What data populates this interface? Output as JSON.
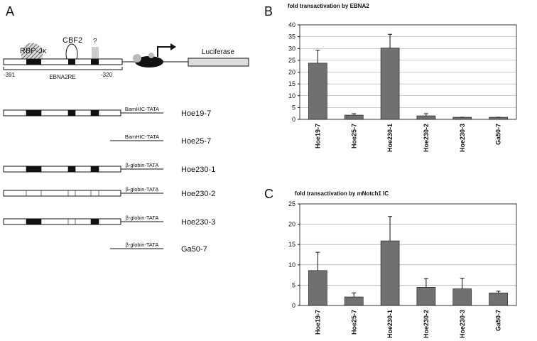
{
  "panels": [
    "A",
    "B",
    "C"
  ],
  "diagram": {
    "rbp": "RBP-Jκ",
    "cbf2": "CBF2",
    "unknown": "?",
    "reporter": "Luciferase",
    "start": "-391",
    "end": "-320",
    "region": "EBNA2RE",
    "constructs": [
      {
        "name": "Hoe19-7",
        "promoter": "BamHIC-TATA"
      },
      {
        "name": "Hoe25-7",
        "promoter": "BamHIC-TATA"
      },
      {
        "name": "Hoe230-1",
        "promoter": "β-globin-TATA"
      },
      {
        "name": "Hoe230-2",
        "promoter": "β-globin-TATA"
      },
      {
        "name": "Hoe230-3",
        "promoter": "β-globin-TATA"
      },
      {
        "name": "Ga50-7",
        "promoter": "β-globin-TATA"
      }
    ]
  },
  "chart_data": [
    {
      "type": "bar",
      "title": "fold transactivation by EBNA2",
      "categories": [
        "Hoe19-7",
        "Hoe25-7",
        "Hoe230-1",
        "Hoe230-2",
        "Hoe230-3",
        "Ga50-7"
      ],
      "values": [
        23.8,
        1.8,
        30.2,
        1.5,
        0.9,
        0.9
      ],
      "errors": [
        5.5,
        0.6,
        5.8,
        0.9,
        0,
        0
      ],
      "color": "#707070",
      "ylim": [
        0,
        40
      ],
      "yticks": [
        0,
        5,
        10,
        15,
        20,
        25,
        30,
        35,
        40
      ],
      "grid": true
    },
    {
      "type": "bar",
      "title": "fold transactivation by mNotch1 IC",
      "categories": [
        "Hoe19-7",
        "Hoe25-7",
        "Hoe230-1",
        "Hoe230-2",
        "Hoe230-3",
        "Ga50-7"
      ],
      "values": [
        8.6,
        2.1,
        15.9,
        4.5,
        4.1,
        3.1
      ],
      "errors": [
        4.5,
        1.0,
        6.0,
        2.1,
        2.6,
        0.4
      ],
      "color": "#707070",
      "ylim": [
        0,
        25
      ],
      "yticks": [
        0,
        5,
        10,
        15,
        20,
        25
      ],
      "grid": true
    }
  ]
}
